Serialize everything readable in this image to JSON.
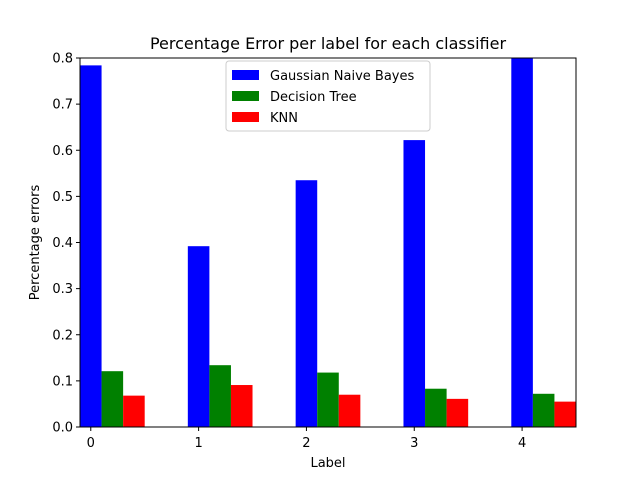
{
  "chart_data": {
    "type": "bar",
    "title": "Percentage Error per label for each classifier",
    "xlabel": "Label",
    "ylabel": "Percentage errors",
    "categories": [
      "0",
      "1",
      "2",
      "3",
      "4"
    ],
    "ylim": [
      0,
      0.8
    ],
    "yticks": [
      "0.0",
      "0.1",
      "0.2",
      "0.3",
      "0.4",
      "0.5",
      "0.6",
      "0.7",
      "0.8"
    ],
    "grid": false,
    "legend_position": "top-center",
    "series": [
      {
        "name": "Gaussian Naive Bayes",
        "color": "#0000ff",
        "values": [
          0.784,
          0.392,
          0.535,
          0.622,
          0.8
        ]
      },
      {
        "name": "Decision Tree",
        "color": "#008000",
        "values": [
          0.121,
          0.134,
          0.118,
          0.083,
          0.072
        ]
      },
      {
        "name": "KNN",
        "color": "#ff0000",
        "values": [
          0.068,
          0.091,
          0.07,
          0.061,
          0.055
        ]
      }
    ]
  }
}
